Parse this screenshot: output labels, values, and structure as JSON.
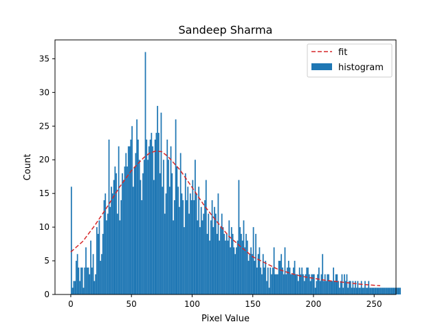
{
  "chart_data": {
    "type": "bar",
    "title": "Sandeep Sharma",
    "xlabel": "Pixel Value",
    "ylabel": "Count",
    "xlim": [
      -13,
      268
    ],
    "ylim": [
      0,
      37.8
    ],
    "x_ticks": [
      0,
      50,
      100,
      150,
      200,
      250
    ],
    "y_ticks": [
      0,
      5,
      10,
      15,
      20,
      25,
      30,
      35
    ],
    "grid": false,
    "legend_position": "top-right",
    "bins": {
      "start": 0,
      "width": 1
    },
    "series": [
      {
        "name": "histogram",
        "kind": "bar",
        "color": "#1f77b4",
        "values": [
          16,
          1,
          2,
          2,
          5,
          6,
          4,
          2,
          4,
          4,
          1,
          4,
          7,
          4,
          4,
          3,
          8,
          4,
          6,
          2,
          3,
          10,
          9,
          11,
          5,
          6,
          9,
          14,
          15,
          11,
          12,
          23,
          13,
          16,
          15,
          17,
          19,
          18,
          12,
          22,
          11,
          14,
          18,
          17,
          19,
          21,
          19,
          22,
          22,
          23,
          25,
          16,
          19,
          21,
          26,
          23,
          20,
          17,
          14,
          18,
          20,
          36,
          23,
          20,
          22,
          23,
          24,
          22,
          17,
          23,
          24,
          28,
          24,
          18,
          27,
          16,
          20,
          12,
          15,
          23,
          20,
          16,
          22,
          18,
          11,
          14,
          26,
          19,
          16,
          13,
          21,
          15,
          14,
          10,
          18,
          14,
          16,
          12,
          15,
          14,
          17,
          14,
          20,
          15,
          11,
          16,
          10,
          13,
          11,
          12,
          14,
          17,
          9,
          12,
          8,
          11,
          14,
          10,
          13,
          12,
          9,
          15,
          8,
          10,
          12,
          10,
          9,
          8,
          9,
          8,
          11,
          7,
          10,
          9,
          7,
          6,
          7,
          8,
          17,
          10,
          9,
          8,
          11,
          7,
          9,
          8,
          5,
          6,
          7,
          6,
          10,
          5,
          9,
          4,
          6,
          7,
          4,
          3,
          6,
          4,
          5,
          2,
          4,
          1,
          4,
          3,
          4,
          7,
          3,
          3,
          3,
          5,
          5,
          6,
          4,
          3,
          7,
          3,
          4,
          5,
          4,
          3,
          3,
          4,
          5,
          3,
          3,
          2,
          4,
          3,
          4,
          3,
          2,
          3,
          4,
          4,
          3,
          2,
          3,
          3,
          3,
          1,
          2,
          3,
          4,
          2,
          3,
          6,
          2,
          3,
          2,
          3,
          3,
          2,
          2,
          2,
          4,
          2,
          3,
          3,
          2,
          1,
          2,
          3,
          1,
          3,
          2,
          3,
          1,
          2,
          2,
          1,
          2,
          1,
          2,
          1,
          2,
          1,
          1,
          2,
          1,
          1,
          2,
          1,
          1,
          2,
          1,
          1,
          1,
          1,
          1,
          1,
          1,
          1,
          1,
          1,
          1,
          1,
          1,
          1,
          1,
          1,
          1,
          1,
          1,
          1,
          1,
          1,
          1,
          1,
          1,
          1
        ]
      },
      {
        "name": "fit",
        "kind": "line",
        "color": "#d62728",
        "dash": "dashed",
        "x": [
          0,
          10,
          20,
          30,
          40,
          50,
          60,
          65,
          70,
          75,
          80,
          90,
          100,
          110,
          120,
          130,
          140,
          150,
          160,
          170,
          180,
          190,
          200,
          210,
          220,
          230,
          240,
          255
        ],
        "values": [
          6.3,
          7.9,
          10.3,
          13.0,
          15.9,
          18.4,
          20.3,
          21.0,
          21.3,
          21.2,
          20.5,
          18.5,
          15.9,
          13.2,
          10.9,
          8.7,
          7.1,
          5.6,
          4.7,
          3.8,
          3.2,
          2.7,
          2.4,
          2.1,
          1.9,
          1.7,
          1.5,
          1.3
        ]
      }
    ]
  }
}
